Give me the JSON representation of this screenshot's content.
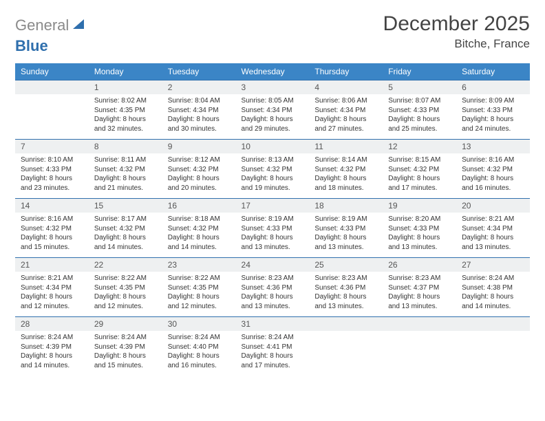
{
  "colors": {
    "header_bg": "#3b85c6",
    "header_text": "#ffffff",
    "daynum_bg": "#eef0f1",
    "border": "#2f6fad",
    "body_text": "#333333",
    "logo_gray": "#8a8a8a",
    "logo_blue": "#2f6fad"
  },
  "logo": {
    "part1": "General",
    "part2": "Blue"
  },
  "title": "December 2025",
  "location": "Bitche, France",
  "weekdays": [
    "Sunday",
    "Monday",
    "Tuesday",
    "Wednesday",
    "Thursday",
    "Friday",
    "Saturday"
  ],
  "weeks": [
    [
      null,
      {
        "n": "1",
        "sr": "Sunrise: 8:02 AM",
        "ss": "Sunset: 4:35 PM",
        "d1": "Daylight: 8 hours",
        "d2": "and 32 minutes."
      },
      {
        "n": "2",
        "sr": "Sunrise: 8:04 AM",
        "ss": "Sunset: 4:34 PM",
        "d1": "Daylight: 8 hours",
        "d2": "and 30 minutes."
      },
      {
        "n": "3",
        "sr": "Sunrise: 8:05 AM",
        "ss": "Sunset: 4:34 PM",
        "d1": "Daylight: 8 hours",
        "d2": "and 29 minutes."
      },
      {
        "n": "4",
        "sr": "Sunrise: 8:06 AM",
        "ss": "Sunset: 4:34 PM",
        "d1": "Daylight: 8 hours",
        "d2": "and 27 minutes."
      },
      {
        "n": "5",
        "sr": "Sunrise: 8:07 AM",
        "ss": "Sunset: 4:33 PM",
        "d1": "Daylight: 8 hours",
        "d2": "and 25 minutes."
      },
      {
        "n": "6",
        "sr": "Sunrise: 8:09 AM",
        "ss": "Sunset: 4:33 PM",
        "d1": "Daylight: 8 hours",
        "d2": "and 24 minutes."
      }
    ],
    [
      {
        "n": "7",
        "sr": "Sunrise: 8:10 AM",
        "ss": "Sunset: 4:33 PM",
        "d1": "Daylight: 8 hours",
        "d2": "and 23 minutes."
      },
      {
        "n": "8",
        "sr": "Sunrise: 8:11 AM",
        "ss": "Sunset: 4:32 PM",
        "d1": "Daylight: 8 hours",
        "d2": "and 21 minutes."
      },
      {
        "n": "9",
        "sr": "Sunrise: 8:12 AM",
        "ss": "Sunset: 4:32 PM",
        "d1": "Daylight: 8 hours",
        "d2": "and 20 minutes."
      },
      {
        "n": "10",
        "sr": "Sunrise: 8:13 AM",
        "ss": "Sunset: 4:32 PM",
        "d1": "Daylight: 8 hours",
        "d2": "and 19 minutes."
      },
      {
        "n": "11",
        "sr": "Sunrise: 8:14 AM",
        "ss": "Sunset: 4:32 PM",
        "d1": "Daylight: 8 hours",
        "d2": "and 18 minutes."
      },
      {
        "n": "12",
        "sr": "Sunrise: 8:15 AM",
        "ss": "Sunset: 4:32 PM",
        "d1": "Daylight: 8 hours",
        "d2": "and 17 minutes."
      },
      {
        "n": "13",
        "sr": "Sunrise: 8:16 AM",
        "ss": "Sunset: 4:32 PM",
        "d1": "Daylight: 8 hours",
        "d2": "and 16 minutes."
      }
    ],
    [
      {
        "n": "14",
        "sr": "Sunrise: 8:16 AM",
        "ss": "Sunset: 4:32 PM",
        "d1": "Daylight: 8 hours",
        "d2": "and 15 minutes."
      },
      {
        "n": "15",
        "sr": "Sunrise: 8:17 AM",
        "ss": "Sunset: 4:32 PM",
        "d1": "Daylight: 8 hours",
        "d2": "and 14 minutes."
      },
      {
        "n": "16",
        "sr": "Sunrise: 8:18 AM",
        "ss": "Sunset: 4:32 PM",
        "d1": "Daylight: 8 hours",
        "d2": "and 14 minutes."
      },
      {
        "n": "17",
        "sr": "Sunrise: 8:19 AM",
        "ss": "Sunset: 4:33 PM",
        "d1": "Daylight: 8 hours",
        "d2": "and 13 minutes."
      },
      {
        "n": "18",
        "sr": "Sunrise: 8:19 AM",
        "ss": "Sunset: 4:33 PM",
        "d1": "Daylight: 8 hours",
        "d2": "and 13 minutes."
      },
      {
        "n": "19",
        "sr": "Sunrise: 8:20 AM",
        "ss": "Sunset: 4:33 PM",
        "d1": "Daylight: 8 hours",
        "d2": "and 13 minutes."
      },
      {
        "n": "20",
        "sr": "Sunrise: 8:21 AM",
        "ss": "Sunset: 4:34 PM",
        "d1": "Daylight: 8 hours",
        "d2": "and 13 minutes."
      }
    ],
    [
      {
        "n": "21",
        "sr": "Sunrise: 8:21 AM",
        "ss": "Sunset: 4:34 PM",
        "d1": "Daylight: 8 hours",
        "d2": "and 12 minutes."
      },
      {
        "n": "22",
        "sr": "Sunrise: 8:22 AM",
        "ss": "Sunset: 4:35 PM",
        "d1": "Daylight: 8 hours",
        "d2": "and 12 minutes."
      },
      {
        "n": "23",
        "sr": "Sunrise: 8:22 AM",
        "ss": "Sunset: 4:35 PM",
        "d1": "Daylight: 8 hours",
        "d2": "and 12 minutes."
      },
      {
        "n": "24",
        "sr": "Sunrise: 8:23 AM",
        "ss": "Sunset: 4:36 PM",
        "d1": "Daylight: 8 hours",
        "d2": "and 13 minutes."
      },
      {
        "n": "25",
        "sr": "Sunrise: 8:23 AM",
        "ss": "Sunset: 4:36 PM",
        "d1": "Daylight: 8 hours",
        "d2": "and 13 minutes."
      },
      {
        "n": "26",
        "sr": "Sunrise: 8:23 AM",
        "ss": "Sunset: 4:37 PM",
        "d1": "Daylight: 8 hours",
        "d2": "and 13 minutes."
      },
      {
        "n": "27",
        "sr": "Sunrise: 8:24 AM",
        "ss": "Sunset: 4:38 PM",
        "d1": "Daylight: 8 hours",
        "d2": "and 14 minutes."
      }
    ],
    [
      {
        "n": "28",
        "sr": "Sunrise: 8:24 AM",
        "ss": "Sunset: 4:39 PM",
        "d1": "Daylight: 8 hours",
        "d2": "and 14 minutes."
      },
      {
        "n": "29",
        "sr": "Sunrise: 8:24 AM",
        "ss": "Sunset: 4:39 PM",
        "d1": "Daylight: 8 hours",
        "d2": "and 15 minutes."
      },
      {
        "n": "30",
        "sr": "Sunrise: 8:24 AM",
        "ss": "Sunset: 4:40 PM",
        "d1": "Daylight: 8 hours",
        "d2": "and 16 minutes."
      },
      {
        "n": "31",
        "sr": "Sunrise: 8:24 AM",
        "ss": "Sunset: 4:41 PM",
        "d1": "Daylight: 8 hours",
        "d2": "and 17 minutes."
      },
      null,
      null,
      null
    ]
  ]
}
